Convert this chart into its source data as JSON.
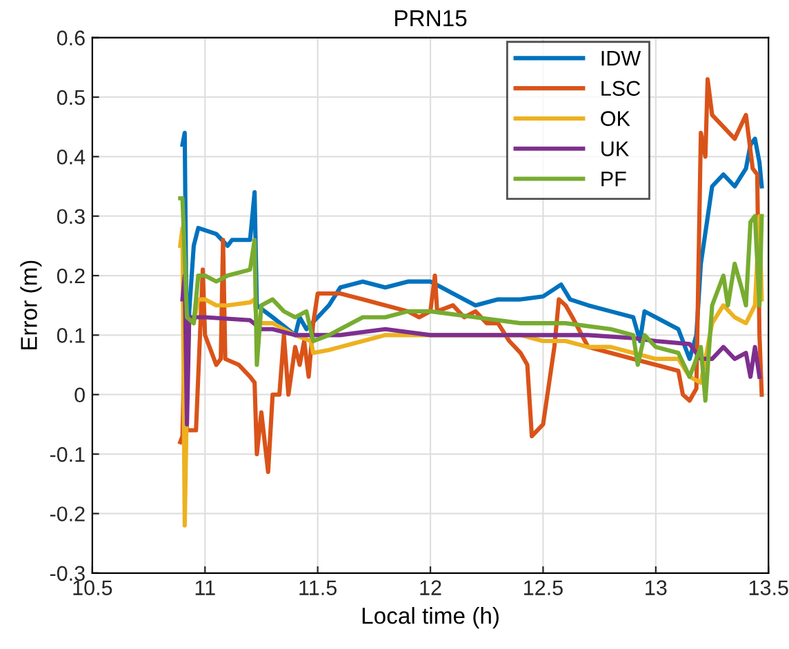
{
  "chart_data": {
    "type": "line",
    "title": "PRN15",
    "xlabel": "Local time (h)",
    "ylabel": "Error (m)",
    "xlim": [
      10.5,
      13.5
    ],
    "xticks": [
      10.5,
      11,
      11.5,
      12,
      12.5,
      13,
      13.5
    ],
    "ylim": [
      -0.3,
      0.6
    ],
    "yticks": [
      -0.3,
      -0.2,
      -0.1,
      0,
      0.1,
      0.2,
      0.3,
      0.4,
      0.5,
      0.6
    ],
    "grid": true,
    "legend": "top right",
    "marker": "none",
    "line_style": "solid",
    "series": [
      {
        "name": "IDW",
        "color": "#0072bd",
        "x": [
          10.9,
          10.91,
          10.92,
          10.93,
          10.95,
          10.97,
          11.05,
          11.1,
          11.12,
          11.2,
          11.22,
          11.23,
          11.3,
          11.4,
          11.42,
          11.45,
          11.5,
          11.55,
          11.6,
          11.7,
          11.8,
          11.9,
          12.0,
          12.05,
          12.1,
          12.2,
          12.3,
          12.4,
          12.5,
          12.58,
          12.62,
          12.7,
          12.8,
          12.9,
          12.93,
          12.95,
          13.0,
          13.1,
          13.15,
          13.18,
          13.2,
          13.25,
          13.3,
          13.35,
          13.4,
          13.42,
          13.44,
          13.46,
          13.47
        ],
        "values": [
          0.42,
          0.44,
          0.02,
          0.14,
          0.25,
          0.28,
          0.27,
          0.25,
          0.26,
          0.26,
          0.34,
          0.15,
          0.13,
          0.1,
          0.13,
          0.11,
          0.13,
          0.15,
          0.18,
          0.19,
          0.18,
          0.19,
          0.19,
          0.18,
          0.17,
          0.15,
          0.16,
          0.16,
          0.165,
          0.185,
          0.16,
          0.15,
          0.14,
          0.13,
          0.09,
          0.14,
          0.13,
          0.11,
          0.06,
          0.1,
          0.22,
          0.35,
          0.37,
          0.35,
          0.38,
          0.42,
          0.43,
          0.39,
          0.35
        ]
      },
      {
        "name": "LSC",
        "color": "#d95319",
        "x": [
          10.89,
          10.9,
          10.91,
          10.92,
          10.96,
          10.99,
          11.0,
          11.05,
          11.07,
          11.08,
          11.09,
          11.15,
          11.2,
          11.22,
          11.23,
          11.25,
          11.28,
          11.3,
          11.33,
          11.35,
          11.37,
          11.4,
          11.42,
          11.44,
          11.46,
          11.48,
          11.5,
          11.55,
          11.6,
          11.7,
          11.8,
          11.9,
          11.95,
          12.0,
          12.02,
          12.03,
          12.1,
          12.15,
          12.2,
          12.25,
          12.3,
          12.35,
          12.4,
          12.43,
          12.45,
          12.5,
          12.55,
          12.57,
          12.6,
          12.63,
          12.7,
          12.8,
          12.9,
          13.0,
          13.1,
          13.12,
          13.15,
          13.18,
          13.2,
          13.22,
          13.23,
          13.25,
          13.3,
          13.35,
          13.4,
          13.43,
          13.45,
          13.46,
          13.47
        ],
        "values": [
          -0.08,
          -0.07,
          0.1,
          -0.06,
          -0.06,
          0.21,
          0.1,
          0.05,
          0.06,
          0.26,
          0.06,
          0.05,
          0.03,
          0.02,
          -0.1,
          -0.03,
          -0.13,
          0.0,
          0.0,
          0.1,
          0.0,
          0.08,
          0.05,
          0.09,
          0.03,
          0.12,
          0.17,
          0.17,
          0.17,
          0.16,
          0.15,
          0.14,
          0.13,
          0.14,
          0.2,
          0.14,
          0.15,
          0.13,
          0.14,
          0.12,
          0.12,
          0.09,
          0.07,
          0.05,
          -0.07,
          -0.05,
          0.08,
          0.16,
          0.15,
          0.13,
          0.08,
          0.07,
          0.06,
          0.05,
          0.04,
          0.0,
          -0.01,
          0.01,
          0.44,
          0.4,
          0.53,
          0.47,
          0.45,
          0.43,
          0.47,
          0.38,
          0.37,
          0.1,
          0.0
        ]
      },
      {
        "name": "OK",
        "color": "#edb120",
        "x": [
          10.89,
          10.9,
          10.91,
          10.92,
          10.93,
          10.95,
          10.97,
          11.0,
          11.05,
          11.1,
          11.2,
          11.22,
          11.23,
          11.3,
          11.4,
          11.47,
          11.48,
          11.55,
          11.6,
          11.7,
          11.8,
          12.0,
          12.2,
          12.4,
          12.5,
          12.6,
          12.7,
          12.8,
          12.9,
          13.0,
          13.1,
          13.15,
          13.2,
          13.25,
          13.3,
          13.35,
          13.4,
          13.44,
          13.46,
          13.47
        ],
        "values": [
          0.25,
          0.28,
          -0.22,
          0.0,
          0.13,
          0.12,
          0.16,
          0.16,
          0.15,
          0.15,
          0.155,
          0.16,
          0.12,
          0.12,
          0.1,
          0.09,
          0.07,
          0.075,
          0.08,
          0.09,
          0.1,
          0.1,
          0.1,
          0.1,
          0.09,
          0.09,
          0.08,
          0.08,
          0.07,
          0.06,
          0.06,
          0.03,
          0.02,
          0.12,
          0.15,
          0.13,
          0.12,
          0.15,
          0.3,
          0.16
        ]
      },
      {
        "name": "UK",
        "color": "#7e2f8e",
        "x": [
          10.9,
          10.91,
          10.92,
          10.93,
          11.0,
          11.2,
          11.25,
          11.3,
          11.4,
          11.5,
          11.6,
          11.8,
          12.0,
          12.2,
          12.5,
          12.7,
          12.9,
          13.0,
          13.15,
          13.2,
          13.25,
          13.3,
          13.35,
          13.4,
          13.42,
          13.44,
          13.46
        ],
        "values": [
          0.16,
          0.2,
          -0.05,
          0.13,
          0.13,
          0.125,
          0.11,
          0.11,
          0.1,
          0.1,
          0.1,
          0.11,
          0.1,
          0.1,
          0.1,
          0.1,
          0.095,
          0.09,
          0.085,
          0.06,
          0.06,
          0.08,
          0.06,
          0.07,
          0.03,
          0.08,
          0.03
        ]
      },
      {
        "name": "PF",
        "color": "#77ac30",
        "x": [
          10.89,
          10.9,
          10.92,
          10.95,
          10.97,
          11.0,
          11.05,
          11.1,
          11.2,
          11.22,
          11.23,
          11.25,
          11.3,
          11.35,
          11.4,
          11.45,
          11.48,
          11.55,
          11.6,
          11.7,
          11.8,
          11.9,
          12.0,
          12.2,
          12.4,
          12.6,
          12.8,
          12.9,
          12.92,
          12.95,
          13.0,
          13.1,
          13.15,
          13.2,
          13.22,
          13.25,
          13.3,
          13.32,
          13.35,
          13.38,
          13.4,
          13.42,
          13.44,
          13.46,
          13.47
        ],
        "values": [
          0.33,
          0.33,
          0.13,
          0.12,
          0.2,
          0.2,
          0.19,
          0.2,
          0.21,
          0.26,
          0.05,
          0.15,
          0.16,
          0.14,
          0.13,
          0.14,
          0.09,
          0.1,
          0.11,
          0.13,
          0.13,
          0.14,
          0.14,
          0.13,
          0.12,
          0.12,
          0.11,
          0.1,
          0.05,
          0.1,
          0.08,
          0.07,
          0.03,
          0.08,
          -0.01,
          0.15,
          0.2,
          0.15,
          0.22,
          0.18,
          0.15,
          0.29,
          0.3,
          0.15,
          0.3
        ]
      }
    ]
  }
}
